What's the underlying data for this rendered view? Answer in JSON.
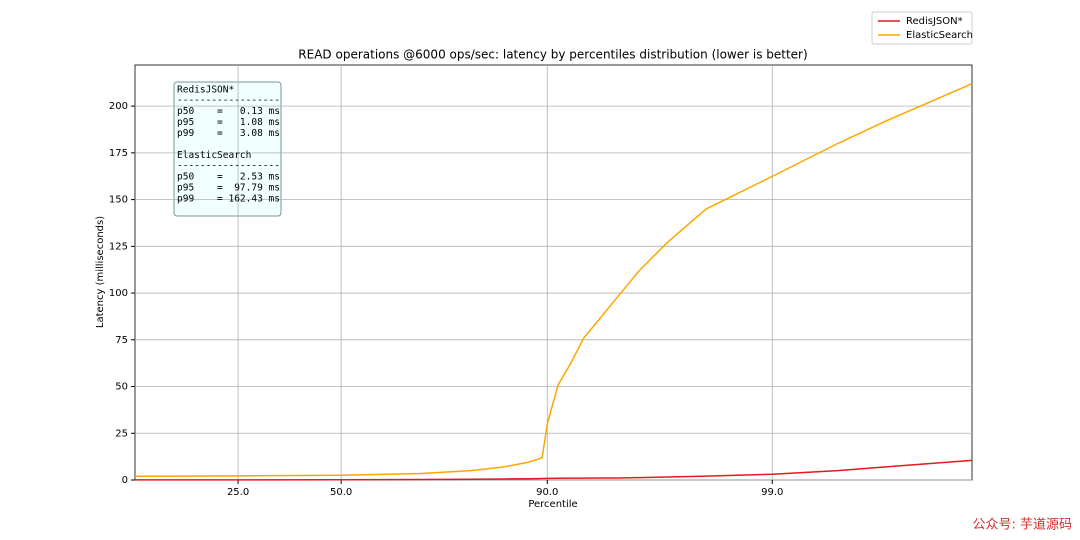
{
  "chart_data": {
    "type": "line",
    "title": "READ operations @6000 ops/sec: latency by percentiles distribution (lower is better)",
    "x_label": "Percentile",
    "y_label": "Latency (milliseconds)",
    "x_scale": "logit",
    "x": [
      10,
      25,
      50,
      70,
      80,
      85,
      88,
      89,
      89.5,
      90,
      91,
      92,
      93,
      94,
      95,
      96,
      97,
      98,
      99,
      99.5,
      99.7,
      99.88
    ],
    "series": [
      {
        "name": "RedisJSON*",
        "color": "#e41a1c",
        "values": [
          0.05,
          0.08,
          0.13,
          0.25,
          0.4,
          0.55,
          0.7,
          0.75,
          0.8,
          0.85,
          0.92,
          0.98,
          1.02,
          1.05,
          1.08,
          1.3,
          1.6,
          2.1,
          3.08,
          5,
          7,
          10.5
        ]
      },
      {
        "name": "ElasticSearch",
        "color": "#ffa500",
        "values": [
          2,
          2.2,
          2.53,
          3.5,
          5,
          7,
          9.5,
          11,
          12,
          30,
          51,
          62,
          76,
          86,
          97.79,
          112,
          127,
          145,
          162.43,
          180,
          192,
          212
        ]
      }
    ],
    "xlim": [
      10,
      99.88
    ],
    "xticks": [
      {
        "value": 25,
        "label": "25.0"
      },
      {
        "value": 50,
        "label": "50.0"
      },
      {
        "value": 90,
        "label": "90.0"
      },
      {
        "value": 99,
        "label": "99.0"
      }
    ],
    "ylim": [
      0,
      222
    ],
    "yticks": [
      0,
      25,
      50,
      75,
      100,
      125,
      150,
      175,
      200
    ],
    "grid": true,
    "legend": "top-right-outside",
    "stats_box": [
      [
        "RedisJSON*",
        "------------------",
        "p50    =   0.13 ms",
        "p95    =   1.08 ms",
        "p99    =   3.08 ms"
      ],
      [
        "ElasticSearch",
        "------------------",
        "p50    =   2.53 ms",
        "p95    =  97.79 ms",
        "p99    = 162.43 ms"
      ]
    ]
  },
  "watermark": "公众号: 芋道源码"
}
